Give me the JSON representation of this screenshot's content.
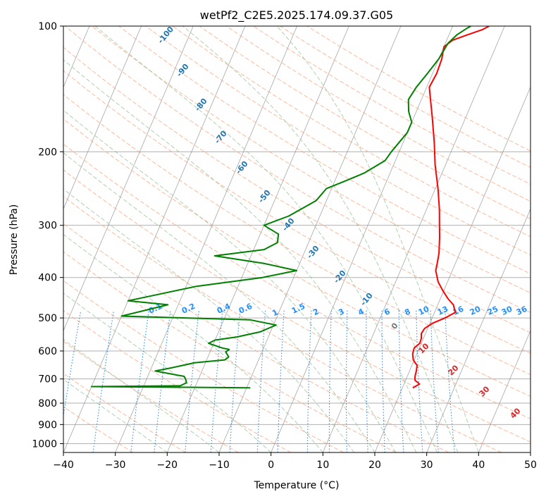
{
  "chart_data": {
    "type": "line",
    "title": "wetPf2_C2E5.2025.174.09.37.G05",
    "xlabel": "Temperature (°C)",
    "ylabel": "Pressure (hPa)",
    "xlim": [
      -40,
      50
    ],
    "ylim": [
      1050,
      100
    ],
    "y_scale": "log",
    "grid": true,
    "x_ticks": [
      "−40",
      "−30",
      "−20",
      "−10",
      "0",
      "10",
      "20",
      "30",
      "40",
      "50"
    ],
    "y_ticks": [
      "100",
      "200",
      "300",
      "400",
      "500",
      "600",
      "700",
      "800",
      "900",
      "1000"
    ],
    "colors": {
      "temperature": "#ff0000",
      "dewpoint": "#008000",
      "dry_adiabat": "#ffa07a",
      "moist_adiabat": "#8fbc8f",
      "mixing_ratio": "#1e90ff",
      "isotherm": "#808080",
      "adiabat_label": "#1f77b4",
      "mixing_label": "#2090ff",
      "red_label": "#d62728"
    },
    "series": [
      {
        "name": "",
        "key": "temperature",
        "points": [
          [
            22.0,
            735
          ],
          [
            23.0,
            720
          ],
          [
            21.8,
            705
          ],
          [
            21.5,
            690
          ],
          [
            21.3,
            670
          ],
          [
            21.0,
            650
          ],
          [
            19.8,
            630
          ],
          [
            19.2,
            610
          ],
          [
            19.0,
            590
          ],
          [
            19.7,
            575
          ],
          [
            19.6,
            560
          ],
          [
            19.2,
            545
          ],
          [
            19.4,
            530
          ],
          [
            20.5,
            515
          ],
          [
            22.5,
            500
          ],
          [
            24.0,
            485
          ],
          [
            23.0,
            465
          ],
          [
            21.5,
            450
          ],
          [
            19.8,
            430
          ],
          [
            18.2,
            410
          ],
          [
            16.8,
            385
          ],
          [
            16.5,
            370
          ],
          [
            16.0,
            350
          ],
          [
            14.8,
            320
          ],
          [
            13.8,
            300
          ],
          [
            12.5,
            275
          ],
          [
            10.5,
            245
          ],
          [
            8.0,
            215
          ],
          [
            6.0,
            190
          ],
          [
            3.5,
            165
          ],
          [
            1.5,
            148
          ],
          [
            0.5,
            140
          ],
          [
            0.8,
            130
          ],
          [
            0.6,
            120
          ],
          [
            0.0,
            112
          ],
          [
            1.2,
            108
          ],
          [
            3.5,
            105
          ],
          [
            6.0,
            102
          ],
          [
            7.0,
            100
          ]
        ]
      },
      {
        "name": "",
        "key": "dewpoint",
        "points": [
          [
            -9.3,
            735
          ],
          [
            -40.0,
            730
          ],
          [
            -23.0,
            727
          ],
          [
            -22.0,
            715
          ],
          [
            -22.5,
            700
          ],
          [
            -23.0,
            690
          ],
          [
            -29.0,
            670
          ],
          [
            -26.5,
            660
          ],
          [
            -22.0,
            640
          ],
          [
            -16.5,
            630
          ],
          [
            -16.0,
            620
          ],
          [
            -17.0,
            603
          ],
          [
            -16.5,
            595
          ],
          [
            -18.0,
            590
          ],
          [
            -21.0,
            575
          ],
          [
            -20.0,
            565
          ],
          [
            -16.0,
            555
          ],
          [
            -12.0,
            540
          ],
          [
            -9.5,
            520
          ],
          [
            -15.0,
            505
          ],
          [
            -40.0,
            495
          ],
          [
            -32.0,
            465
          ],
          [
            -40.0,
            455
          ],
          [
            -28.0,
            420
          ],
          [
            -16.0,
            400
          ],
          [
            -10.0,
            385
          ],
          [
            -17.0,
            370
          ],
          [
            -27.0,
            355
          ],
          [
            -18.0,
            343
          ],
          [
            -16.0,
            330
          ],
          [
            -16.5,
            315
          ],
          [
            -20.0,
            300
          ],
          [
            -16.0,
            285
          ],
          [
            -12.0,
            262
          ],
          [
            -11.0,
            245
          ],
          [
            -8.0,
            235
          ],
          [
            -5.0,
            225
          ],
          [
            -2.0,
            210
          ],
          [
            -1.5,
            200
          ],
          [
            0.0,
            180
          ],
          [
            0.0,
            170
          ],
          [
            -1.5,
            160
          ],
          [
            -2.5,
            150
          ],
          [
            -2.0,
            140
          ],
          [
            -1.0,
            130
          ],
          [
            0.0,
            120
          ],
          [
            0.5,
            110
          ],
          [
            1.5,
            105
          ],
          [
            3.0,
            101
          ],
          [
            3.5,
            100
          ]
        ]
      }
    ],
    "adiabat_labels": [
      "-100",
      "-90",
      "-80",
      "-70",
      "-60",
      "-50",
      "-40",
      "-30",
      "-20",
      "-10",
      "0"
    ],
    "mixing_ratio_labels": [
      "0.1",
      "0.2",
      "0.4",
      "0.6",
      "1",
      "1.5",
      "2",
      "3",
      "4",
      "6",
      "8",
      "10",
      "13",
      "16",
      "20",
      "25",
      "30",
      "36"
    ],
    "moist_adiabat_labels": [
      "10",
      "20",
      "30",
      "40"
    ]
  }
}
